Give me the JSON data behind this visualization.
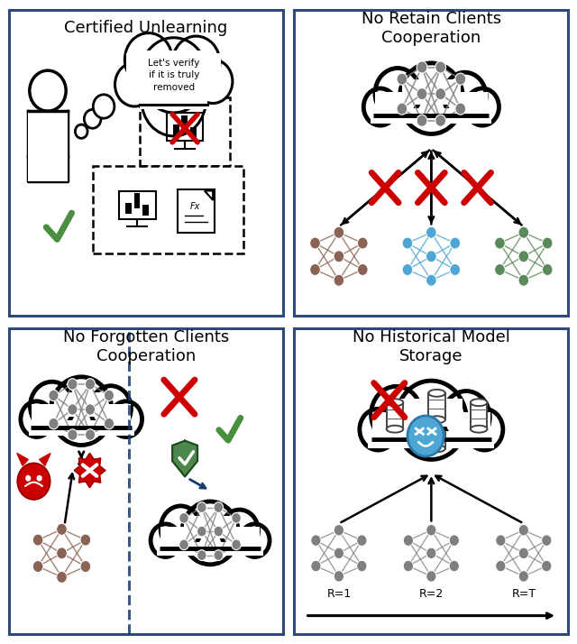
{
  "panel_titles": [
    "Certified Unlearning",
    "No Retain Clients\nCooperation",
    "No Forgotten Clients\nCooperation",
    "No Historical Model\nStorage"
  ],
  "border_color": "#2d4a7a",
  "background_color": "#ffffff",
  "red_cross_color": "#cc0000",
  "green_check_color": "#4a8f3f",
  "gray_node_color": "#7f7f7f",
  "brown_node_color": "#8B6355",
  "blue_node_color": "#4da6d4",
  "green_node_color": "#5a8a5a",
  "dashed_line_color": "#1a3a6e",
  "panel_label_size": 13,
  "r_labels": [
    "R=1",
    "R=2",
    "R=T"
  ]
}
